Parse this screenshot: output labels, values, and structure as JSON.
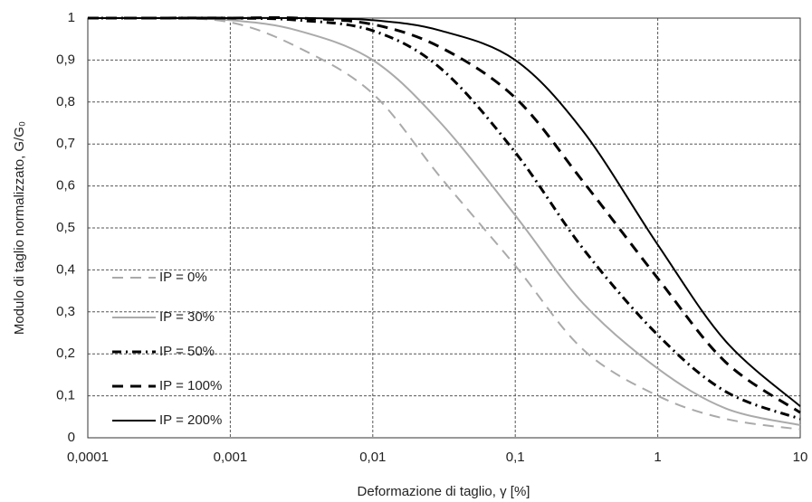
{
  "chart_data": {
    "type": "line",
    "xlabel": "Deformazione di taglio, γ [%]",
    "ylabel": "Modulo di taglio normalizzato, G/G₀",
    "xscale": "log",
    "grid": true,
    "legend": "left",
    "x": [
      0.0001,
      0.0003,
      0.001,
      0.003,
      0.01,
      0.03,
      0.1,
      0.3,
      1,
      3,
      10
    ],
    "xlim": [
      0.0001,
      10
    ],
    "xticks": [
      {
        "value": 0.0001,
        "label": "0,0001"
      },
      {
        "value": 0.001,
        "label": "0,001"
      },
      {
        "value": 0.01,
        "label": "0,01"
      },
      {
        "value": 0.1,
        "label": "0,1"
      },
      1,
      10
    ],
    "ylim": [
      0,
      1
    ],
    "yticks": [
      0,
      {
        "value": 0.1,
        "label": "0,1"
      },
      {
        "value": 0.2,
        "label": "0,2"
      },
      {
        "value": 0.3,
        "label": "0,3"
      },
      {
        "value": 0.4,
        "label": "0,4"
      },
      {
        "value": 0.5,
        "label": "0,5"
      },
      {
        "value": 0.6,
        "label": "0,6"
      },
      {
        "value": 0.7,
        "label": "0,7"
      },
      {
        "value": 0.8,
        "label": "0,8"
      },
      {
        "value": 0.9,
        "label": "0,9"
      },
      1
    ],
    "series": [
      {
        "name": "IP = 0%",
        "color": "#aaaaaa",
        "dash": "12,8",
        "values": [
          1,
          1,
          0.99,
          0.93,
          0.82,
          0.62,
          0.41,
          0.21,
          0.1,
          0.045,
          0.02
        ]
      },
      {
        "name": "IP = 30%",
        "color": "#aaaaaa",
        "dash": "none",
        "values": [
          1,
          1,
          0.995,
          0.97,
          0.9,
          0.75,
          0.53,
          0.32,
          0.165,
          0.07,
          0.03
        ]
      },
      {
        "name": "IP = 50%",
        "color": "#000000",
        "dash": "10,5,2,5",
        "values": [
          1,
          1,
          1,
          0.995,
          0.97,
          0.88,
          0.68,
          0.45,
          0.245,
          0.11,
          0.045
        ]
      },
      {
        "name": "IP = 100%",
        "color": "#000000",
        "dash": "12,8",
        "values": [
          1,
          1,
          1,
          1,
          0.985,
          0.93,
          0.81,
          0.61,
          0.38,
          0.18,
          0.06
        ]
      },
      {
        "name": "IP = 200%",
        "color": "#000000",
        "dash": "none",
        "values": [
          1,
          1,
          1,
          1,
          0.995,
          0.97,
          0.9,
          0.73,
          0.46,
          0.23,
          0.075
        ]
      }
    ]
  }
}
